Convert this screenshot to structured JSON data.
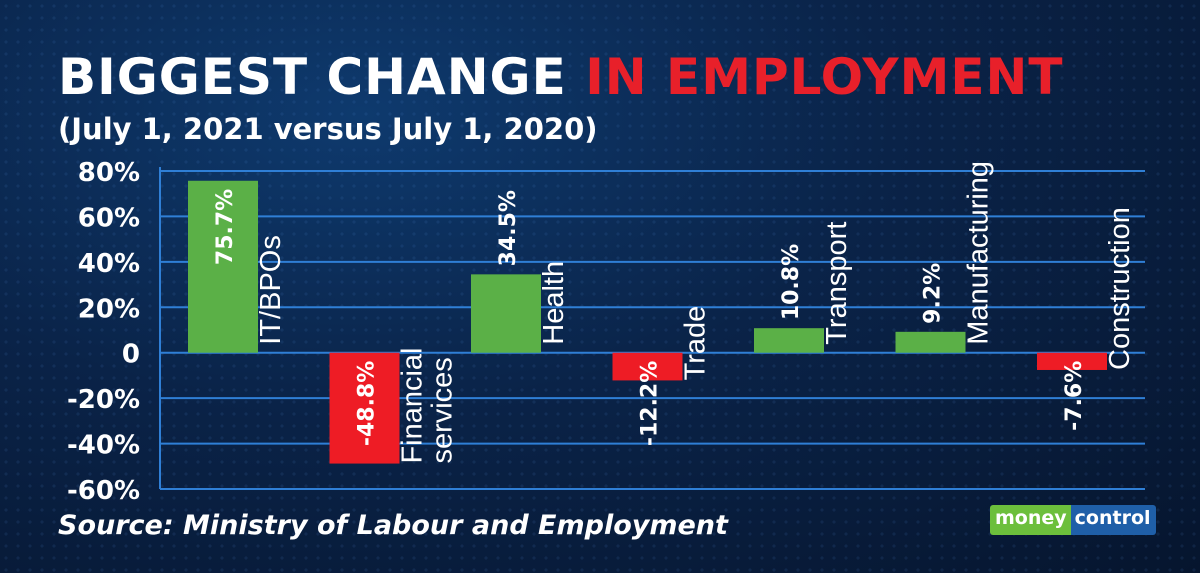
{
  "title": {
    "main": "BIGGEST CHANGE",
    "highlight": "IN EMPLOYMENT"
  },
  "subtitle": "(July 1, 2021 versus July 1, 2020)",
  "source": "Source: Ministry of Labour and Employment",
  "logo": {
    "part1": "money",
    "part2": "control"
  },
  "colors": {
    "positive": "#5bb047",
    "negative": "#ee1c25",
    "grid": "#2f7fd6",
    "text": "#ffffff"
  },
  "chart_data": {
    "type": "bar",
    "categories": [
      "IT/BPOs",
      "Financial services",
      "Health",
      "Trade",
      "Transport",
      "Manufacturing",
      "Construction"
    ],
    "values": [
      75.7,
      -48.8,
      34.5,
      -12.2,
      10.8,
      9.2,
      -7.6
    ],
    "data_labels": [
      "75.7%",
      "-48.8%",
      "34.5%",
      "-12.2%",
      "10.8%",
      "9.2%",
      "-7.6%"
    ],
    "ylim": [
      -60,
      80
    ],
    "yticks": [
      80,
      60,
      40,
      20,
      0,
      -20,
      -40,
      -60
    ],
    "ytick_labels": [
      "80%",
      "60%",
      "40%",
      "20%",
      "0",
      "-20%",
      "-40%",
      "-60%"
    ],
    "grid": true
  }
}
